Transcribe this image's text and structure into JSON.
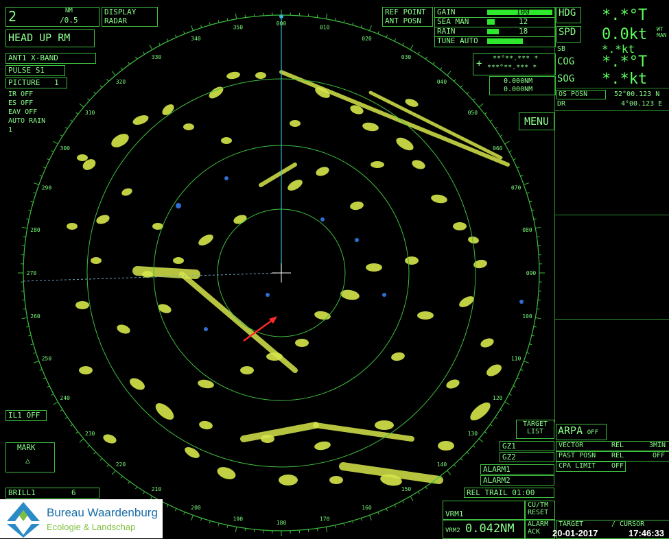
{
  "range": {
    "value": "2",
    "unit": "NM",
    "rings": "/0.5"
  },
  "display": {
    "line1": "DISPLAY",
    "line2": "RADAR"
  },
  "mode": "HEAD UP RM",
  "antenna": "ANT1  X-BAND",
  "pulse": "PULSE S1",
  "picture": {
    "label": "PICTURE",
    "value": "1"
  },
  "status_list": [
    "IR  OFF",
    "ES  OFF",
    "EAV OFF",
    "AUTO RAIN",
    "1"
  ],
  "ref_point": {
    "line1": "REF POINT",
    "line2": "ANT  POSN"
  },
  "gain_rows": [
    {
      "label": "GAIN",
      "value": "100",
      "level": 1.0
    },
    {
      "label": "SEA  MAN",
      "value": "12",
      "level": 0.12
    },
    {
      "label": "RAIN",
      "value": "18",
      "level": 0.18
    },
    {
      "label": "TUNE AUTO",
      "value": "",
      "level": 0.55
    }
  ],
  "cursor_pos": {
    "line1": "**°**.*** *",
    "line2": "***°**.*** *"
  },
  "vrm_readouts": [
    "0.000NM",
    "0.000NM"
  ],
  "menu_label": "MENU",
  "hdg": {
    "label": "HDG",
    "value": "*.*°T"
  },
  "spd": {
    "label": "SPD",
    "value": "0.0kt",
    "suffix": "WT MAN"
  },
  "sb": {
    "label": "SB",
    "value": "*.*kt"
  },
  "cog": {
    "label": "COG",
    "value": "*.*°T"
  },
  "sog": {
    "label": "SOG",
    "value": "*.*kt"
  },
  "os_posn": {
    "label": "OS POSN",
    "lat": "52°00.123 N",
    "dr": "DR",
    "lon": "4°00.123 E"
  },
  "bearings": [
    "000",
    "010",
    "020",
    "030",
    "040",
    "050",
    "060",
    "070",
    "080",
    "090",
    "100",
    "110",
    "120",
    "130",
    "140",
    "150",
    "160",
    "170",
    "180",
    "190",
    "200",
    "210",
    "220",
    "230",
    "240",
    "250",
    "260",
    "270",
    "280",
    "290",
    "300",
    "310",
    "320",
    "330",
    "340",
    "350"
  ],
  "il": "IL1 OFF",
  "mark": {
    "label": "MARK",
    "symbol": "△"
  },
  "brill": {
    "label": "BRILL1",
    "value": "6"
  },
  "target_list": {
    "line1": "TARGET",
    "line2": "LIST"
  },
  "gz": [
    "GZ1",
    "GZ2"
  ],
  "alarms": [
    "ALARM1",
    "ALARM2"
  ],
  "rel_trail": "REL  TRAIL 01:00",
  "arpa": {
    "label": "ARPA",
    "state": "OFF"
  },
  "vector": {
    "label": "VECTOR",
    "mode": "REL",
    "time": "3MIN"
  },
  "past_posn": {
    "label": "PAST POSN",
    "mode": "REL",
    "state": "OFF"
  },
  "cpa_limit": {
    "label": "CPA LIMIT",
    "state": "OFF"
  },
  "vrm1": "VRM1",
  "vrm2": {
    "label": "VRM2",
    "value": "0.042NM"
  },
  "cu_tm": {
    "line1": "CU/TM",
    "line2": "RESET"
  },
  "alarm_ack": {
    "line1": "ALARM",
    "line2": "ACK"
  },
  "target_cursor": {
    "line1": "TARGET",
    "line2": "/ CURSOR"
  },
  "date": "20-01-2017",
  "time": "17:46:33",
  "logo": {
    "name": "Bureau Waardenburg",
    "sub": "Ecologie & Landschap"
  },
  "colors": {
    "radar_green": "#3fbf3f",
    "echo_yellow": "#d6e64a",
    "heading_line": "#37b8d6",
    "arrow": "#ff2b2b"
  }
}
